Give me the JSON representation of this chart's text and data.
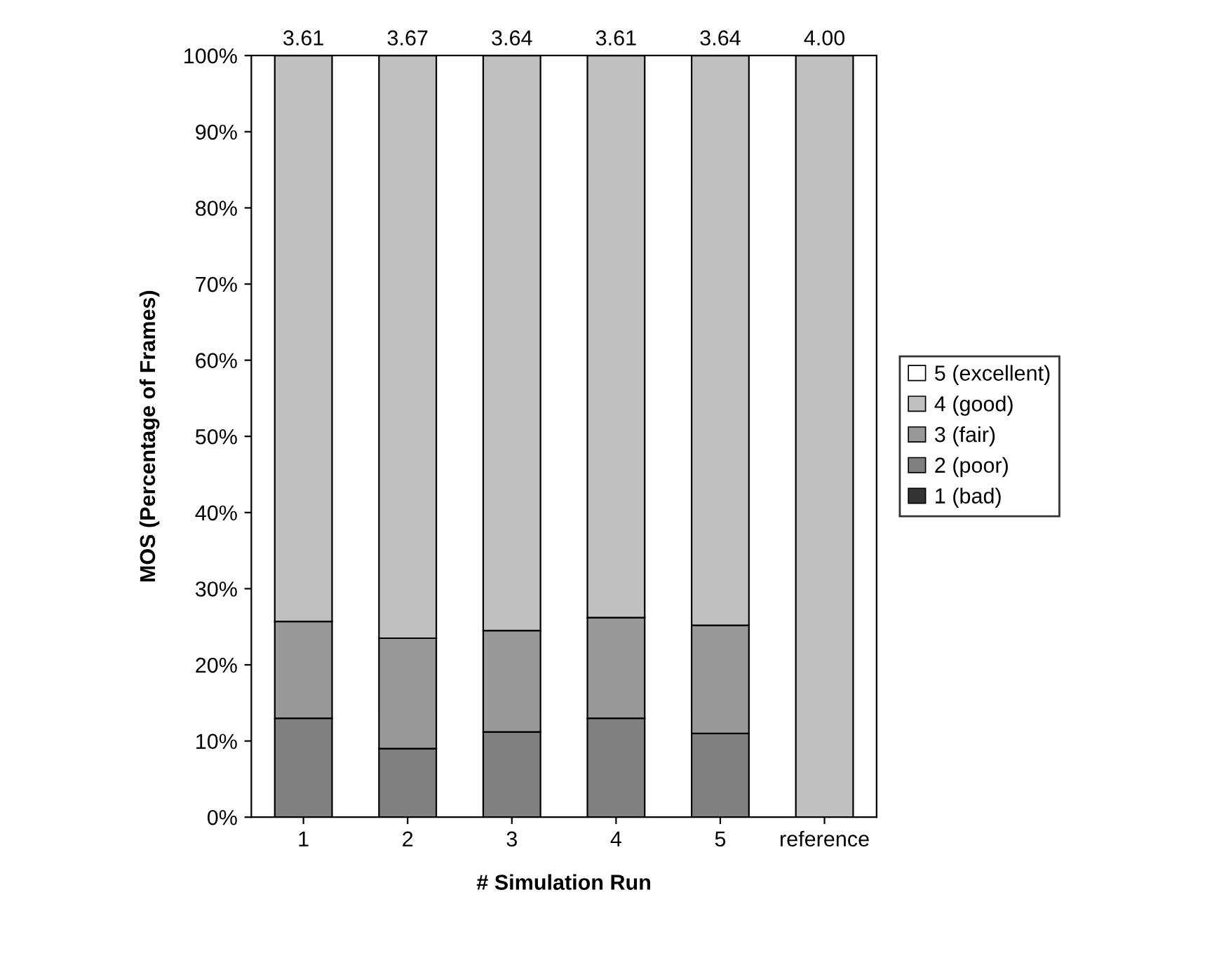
{
  "chart_data": {
    "type": "bar",
    "stacked": true,
    "xlabel": "# Simulation Run",
    "ylabel": "MOS (Percentage of Frames)",
    "categories": [
      "1",
      "2",
      "3",
      "4",
      "5",
      "reference"
    ],
    "series": [
      {
        "name": "1 (bad)",
        "color": "#333333",
        "values": [
          0,
          0,
          0,
          0,
          0,
          0
        ]
      },
      {
        "name": "2 (poor)",
        "color": "#808080",
        "values": [
          13,
          9,
          11.2,
          13,
          11,
          0
        ]
      },
      {
        "name": "3 (fair)",
        "color": "#999999",
        "values": [
          12.7,
          14.5,
          13.3,
          13.2,
          14.2,
          0
        ]
      },
      {
        "name": "4 (good)",
        "color": "#c0c0c0",
        "values": [
          74.3,
          76.5,
          75.5,
          73.8,
          74.8,
          100
        ]
      },
      {
        "name": "5 (excellent)",
        "color": "#ffffff",
        "values": [
          0,
          0,
          0,
          0,
          0,
          0
        ]
      }
    ],
    "annotations": [
      {
        "text": "3.61",
        "x": "1",
        "y": 100
      },
      {
        "text": "3.67",
        "x": "2",
        "y": 100
      },
      {
        "text": "3.64",
        "x": "3",
        "y": 100
      },
      {
        "text": "3.61",
        "x": "4",
        "y": 100
      },
      {
        "text": "3.64",
        "x": "5",
        "y": 100
      },
      {
        "text": "4.00",
        "x": "reference",
        "y": 100
      }
    ],
    "ylim": [
      0,
      100
    ],
    "yticks": [
      {
        "value": 0,
        "label": "0%"
      },
      {
        "value": 10,
        "label": "10%"
      },
      {
        "value": 20,
        "label": "20%"
      },
      {
        "value": 30,
        "label": "30%"
      },
      {
        "value": 40,
        "label": "40%"
      },
      {
        "value": 50,
        "label": "50%"
      },
      {
        "value": 60,
        "label": "60%"
      },
      {
        "value": 70,
        "label": "70%"
      },
      {
        "value": 80,
        "label": "80%"
      },
      {
        "value": 90,
        "label": "90%"
      },
      {
        "value": 100,
        "label": "100%"
      }
    ],
    "grid": false,
    "legend": "right"
  }
}
